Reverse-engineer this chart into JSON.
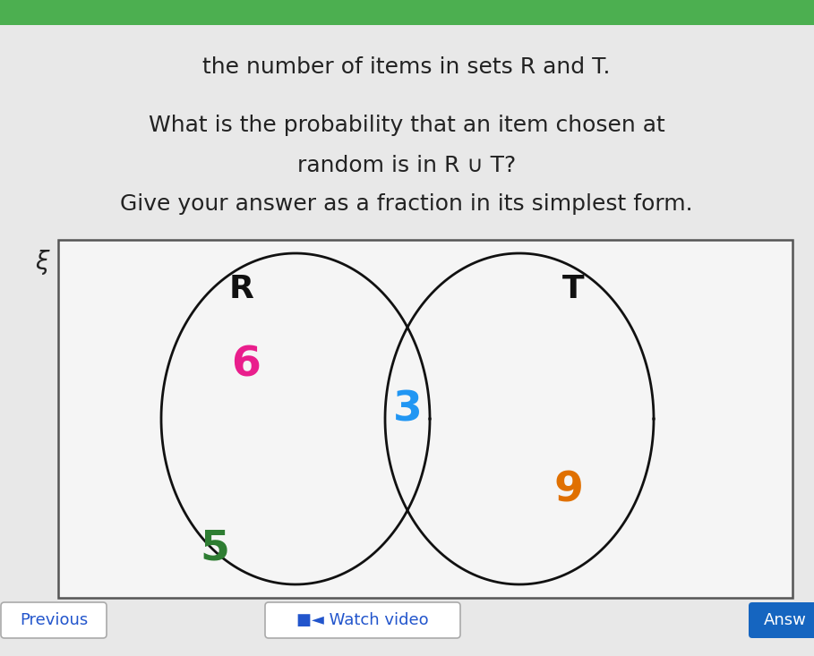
{
  "background_color": "#e8e8e8",
  "text_color": "#222222",
  "line1": "the number of items in sets R and T.",
  "line2": "What is the probability that an item chosen at",
  "line3": "random is in R ∪ T?",
  "line4": "Give your answer as a fraction in its simplest form.",
  "venn_label_R": "R",
  "venn_label_T": "T",
  "venn_value_R_only": "6",
  "venn_value_R_only_color": "#e91e8c",
  "venn_value_intersection": "3",
  "venn_value_intersection_color": "#2196f3",
  "venn_value_T_only": "9",
  "venn_value_T_only_color": "#e07000",
  "venn_value_outside": "5",
  "venn_value_outside_color": "#2e7d32",
  "xi_label": "ξ",
  "circle_color": "#111111",
  "circle_linewidth": 2.0,
  "rect_facecolor": "#f5f5f5",
  "rect_edgecolor": "#555555",
  "btn_previous_color": "#ffffff",
  "btn_previous_text": "Previous",
  "btn_previous_textcolor": "#2255cc",
  "btn_watchvideo_color": "#ffffff",
  "btn_watchvideo_text": "■◄ Watch video",
  "btn_watchvideo_textcolor": "#2255cc",
  "btn_answ_color": "#1565c0",
  "btn_answ_text": "Answ",
  "btn_answ_textcolor": "#ffffff"
}
